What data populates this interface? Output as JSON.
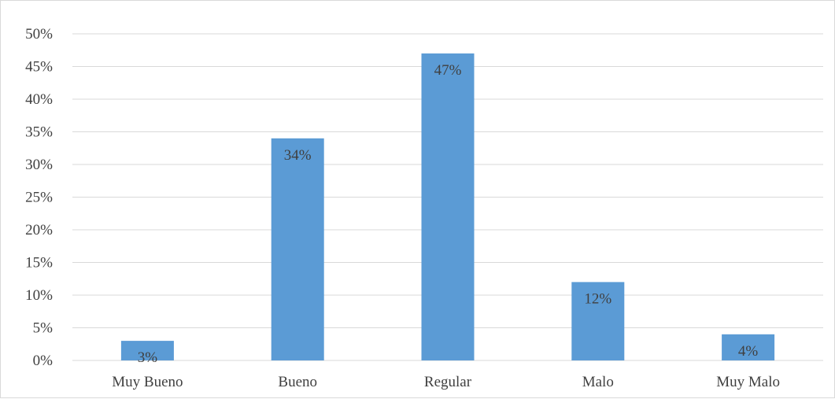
{
  "chart_data": {
    "type": "bar",
    "categories": [
      "Muy Bueno",
      "Bueno",
      "Regular",
      "Malo",
      "Muy Malo"
    ],
    "values": [
      3,
      34,
      47,
      12,
      4
    ],
    "data_labels": [
      "3%",
      "34%",
      "47%",
      "12%",
      "4%"
    ],
    "ylim": [
      0,
      50
    ],
    "yticks": [
      0,
      5,
      10,
      15,
      20,
      25,
      30,
      35,
      40,
      45,
      50
    ],
    "ytick_labels": [
      "0%",
      "5%",
      "10%",
      "15%",
      "20%",
      "25%",
      "30%",
      "35%",
      "40%",
      "45%",
      "50%"
    ],
    "grid": true,
    "legend": "none",
    "title": "",
    "xlabel": "",
    "ylabel": "",
    "colors": {
      "bar": "#5b9bd5",
      "grid": "#d9d9d9",
      "text": "#404040"
    }
  }
}
